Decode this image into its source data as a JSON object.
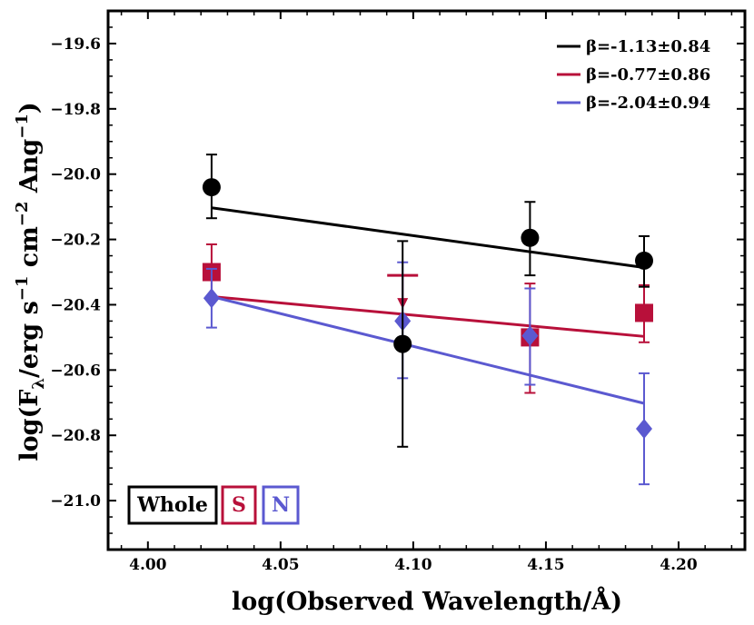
{
  "chart_data": {
    "type": "scatter",
    "xlabel": "log(Observed Wavelength/Å)",
    "ylabel": "log(Fλ/erg s⁻¹ cm⁻² Ang⁻¹)",
    "ylabel_parts": [
      "log(F",
      "λ",
      "/erg s",
      "−1",
      " cm",
      "−2",
      " Ang",
      "−1",
      ")"
    ],
    "xlim": [
      3.985,
      4.225
    ],
    "ylim": [
      -21.15,
      -19.5
    ],
    "x_ticks": [
      4.0,
      4.05,
      4.1,
      4.15,
      4.2
    ],
    "x_tick_labels": [
      "4.00",
      "4.05",
      "4.10",
      "4.15",
      "4.20"
    ],
    "y_ticks": [
      -19.6,
      -19.8,
      -20.0,
      -20.2,
      -20.4,
      -20.6,
      -20.8,
      -21.0
    ],
    "y_tick_labels": [
      "−19.6",
      "−19.8",
      "−20.0",
      "−20.2",
      "−20.4",
      "−20.6",
      "−20.8",
      "−21.0"
    ],
    "grid": false,
    "legend_position": "top-right",
    "series": [
      {
        "name": "Whole",
        "color": "#000000",
        "marker": "circle",
        "fit_label": "β=-1.13±0.84",
        "points": [
          {
            "x": 4.024,
            "y": -20.04,
            "ylo": -20.135,
            "yhi": -19.94
          },
          {
            "x": 4.096,
            "y": -20.52,
            "ylo": -20.835,
            "yhi": -20.205
          },
          {
            "x": 4.144,
            "y": -20.195,
            "ylo": -20.31,
            "yhi": -20.085
          },
          {
            "x": 4.187,
            "y": -20.265,
            "ylo": -20.345,
            "yhi": -20.19
          }
        ],
        "fit": {
          "x": [
            4.024,
            4.187
          ],
          "y": [
            -20.103,
            -20.286
          ]
        }
      },
      {
        "name": "S",
        "color": "#b8103a",
        "marker": "square",
        "fit_label": "β=-0.77±0.86",
        "points": [
          {
            "x": 4.024,
            "y": -20.3,
            "ylo": -20.385,
            "yhi": -20.215
          },
          {
            "x": 4.096,
            "y": -20.31,
            "upper_limit": true
          },
          {
            "x": 4.144,
            "y": -20.5,
            "ylo": -20.67,
            "yhi": -20.335
          },
          {
            "x": 4.187,
            "y": -20.425,
            "ylo": -20.515,
            "yhi": -20.34
          }
        ],
        "fit": {
          "x": [
            4.024,
            4.187
          ],
          "y": [
            -20.375,
            -20.497
          ]
        }
      },
      {
        "name": "N",
        "color": "#5b59d0",
        "marker": "diamond",
        "fit_label": "β=-2.04±0.94",
        "points": [
          {
            "x": 4.024,
            "y": -20.38,
            "ylo": -20.47,
            "yhi": -20.29
          },
          {
            "x": 4.096,
            "y": -20.45,
            "ylo": -20.625,
            "yhi": -20.27
          },
          {
            "x": 4.144,
            "y": -20.495,
            "ylo": -20.645,
            "yhi": -20.35
          },
          {
            "x": 4.187,
            "y": -20.78,
            "ylo": -20.95,
            "yhi": -20.61
          }
        ],
        "fit": {
          "x": [
            4.024,
            4.187
          ],
          "y": [
            -20.375,
            -20.702
          ]
        }
      }
    ]
  },
  "box_labels": {
    "whole": "Whole",
    "s": "S",
    "n": "N"
  }
}
